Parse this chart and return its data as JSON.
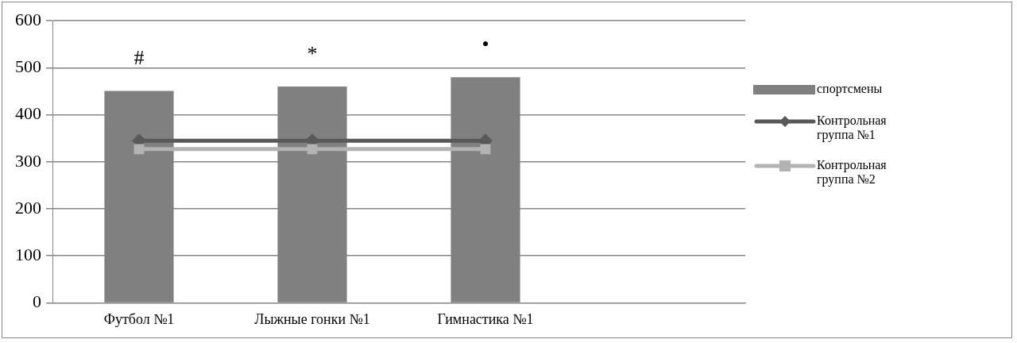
{
  "chart_data": {
    "type": "bar",
    "categories": [
      "Футбол №1",
      "Лыжные гонки №1",
      "Гимнастика №1",
      null
    ],
    "series": [
      {
        "name": "спортсмены",
        "color": "#808080",
        "values": [
          451,
          460,
          480,
          null
        ]
      },
      {
        "name": "Контрольная группа №1",
        "type": "line",
        "color": "#595959",
        "marker": "diamond",
        "values": [
          345,
          345,
          345,
          null
        ]
      },
      {
        "name": "Контрольная группа №2",
        "type": "line",
        "color": "#b3b3b3",
        "marker": "square",
        "values": [
          327,
          327,
          327,
          null
        ]
      }
    ],
    "ylim": [
      0,
      600
    ],
    "yticks": [
      0,
      100,
      200,
      300,
      400,
      500,
      600
    ],
    "grid": "y",
    "legend": "right",
    "annotations": [
      "#",
      "*",
      "•"
    ]
  }
}
